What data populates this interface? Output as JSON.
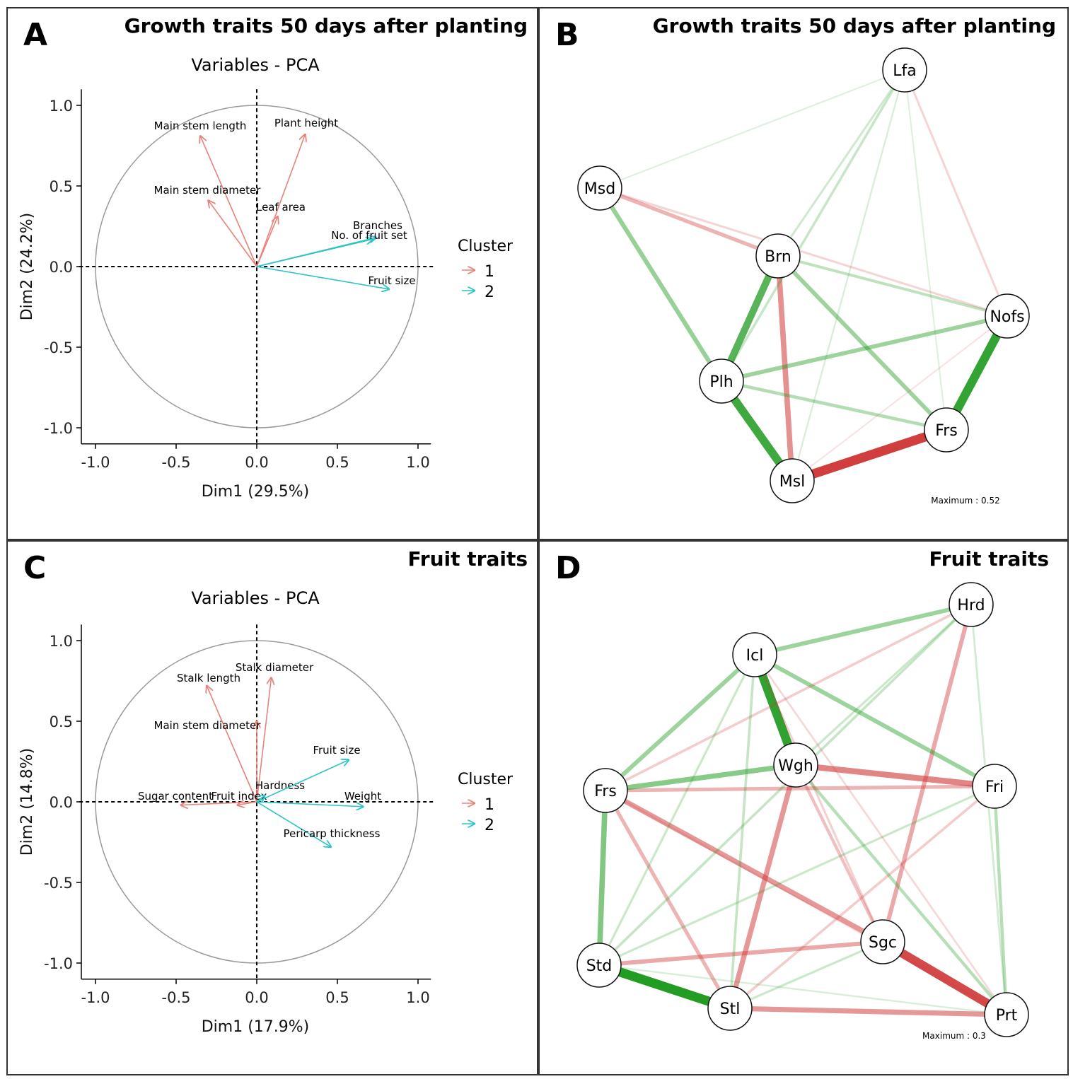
{
  "colors": {
    "cluster1": "#E8837B",
    "cluster2": "#2EC4C6",
    "positive": "#1F9A1F",
    "negative": "#D03A3A"
  },
  "panels": {
    "A": {
      "letter": "A",
      "title": "Growth traits 50 days after planting"
    },
    "B": {
      "letter": "B",
      "title": "Growth traits 50 days after planting",
      "maximum": "Maximum : 0.52"
    },
    "C": {
      "letter": "C",
      "title": "Fruit traits"
    },
    "D": {
      "letter": "D",
      "title": "Fruit traits",
      "maximum": "Maximum : 0.3"
    }
  },
  "chart_data": [
    {
      "id": "A",
      "type": "scatter",
      "subtitle": "Variables - PCA",
      "xlabel": "Dim1 (29.5%)",
      "ylabel": "Dim2 (24.2%)",
      "xlim": [
        -1.0,
        1.0
      ],
      "ylim": [
        -1.0,
        1.0
      ],
      "ticks": [
        -1.0,
        -0.5,
        0.0,
        0.5,
        1.0
      ],
      "tick_labels": [
        "-1.0",
        "-0.5",
        "0.0",
        "0.5",
        "1.0"
      ],
      "legend": {
        "title": "Cluster",
        "items": [
          "1",
          "2"
        ]
      },
      "vectors": [
        {
          "name": "Main stem length",
          "x": -0.35,
          "y": 0.81,
          "cluster": 1
        },
        {
          "name": "Plant height",
          "x": 0.3,
          "y": 0.82,
          "cluster": 1
        },
        {
          "name": "Main stem diameter",
          "x": -0.3,
          "y": 0.41,
          "cluster": 1
        },
        {
          "name": "Leaf area",
          "x": 0.13,
          "y": 0.31,
          "cluster": 1
        },
        {
          "name": "Branches",
          "x": 0.72,
          "y": 0.17,
          "cluster": 2
        },
        {
          "name": "No. of fruit set",
          "x": 0.74,
          "y": 0.18,
          "cluster": 2
        },
        {
          "name": "Fruit size",
          "x": 0.82,
          "y": -0.14,
          "cluster": 2
        }
      ]
    },
    {
      "id": "B",
      "type": "network",
      "nodes": [
        "Lfa",
        "Msd",
        "Brn",
        "Nofs",
        "Plh",
        "Frs",
        "Msl"
      ],
      "maximum": 0.52,
      "edges": [
        {
          "a": "Msl",
          "b": "Frs",
          "w": -0.52
        },
        {
          "a": "Plh",
          "b": "Msl",
          "w": 0.45
        },
        {
          "a": "Nofs",
          "b": "Frs",
          "w": 0.48
        },
        {
          "a": "Brn",
          "b": "Plh",
          "w": 0.38
        },
        {
          "a": "Brn",
          "b": "Msl",
          "w": -0.28
        },
        {
          "a": "Msd",
          "b": "Plh",
          "w": 0.22
        },
        {
          "a": "Msd",
          "b": "Brn",
          "w": -0.18
        },
        {
          "a": "Plh",
          "b": "Nofs",
          "w": 0.2
        },
        {
          "a": "Brn",
          "b": "Frs",
          "w": 0.2
        },
        {
          "a": "Plh",
          "b": "Frs",
          "w": 0.15
        },
        {
          "a": "Brn",
          "b": "Nofs",
          "w": 0.12
        },
        {
          "a": "Lfa",
          "b": "Plh",
          "w": 0.1
        },
        {
          "a": "Lfa",
          "b": "Nofs",
          "w": -0.08
        },
        {
          "a": "Lfa",
          "b": "Brn",
          "w": 0.08
        },
        {
          "a": "Msd",
          "b": "Nofs",
          "w": -0.08
        },
        {
          "a": "Lfa",
          "b": "Msl",
          "w": 0.05
        },
        {
          "a": "Lfa",
          "b": "Msd",
          "w": 0.04
        },
        {
          "a": "Lfa",
          "b": "Frs",
          "w": 0.04
        },
        {
          "a": "Msl",
          "b": "Nofs",
          "w": -0.04
        }
      ]
    },
    {
      "id": "C",
      "type": "scatter",
      "subtitle": "Variables - PCA",
      "xlabel": "Dim1 (17.9%)",
      "ylabel": "Dim2 (14.8%)",
      "xlim": [
        -1.0,
        1.0
      ],
      "ylim": [
        -1.0,
        1.0
      ],
      "ticks": [
        -1.0,
        -0.5,
        0.0,
        0.5,
        1.0
      ],
      "tick_labels": [
        "-1.0",
        "-0.5",
        "0.0",
        "0.5",
        "1.0"
      ],
      "legend": {
        "title": "Cluster",
        "items": [
          "1",
          "2"
        ]
      },
      "vectors": [
        {
          "name": "Stalk length",
          "x": -0.31,
          "y": 0.72,
          "cluster": 1
        },
        {
          "name": "Stalk diameter",
          "x": 0.09,
          "y": 0.77,
          "cluster": 1
        },
        {
          "name": "Main stem diameter",
          "x": 0.0,
          "y": 0.5,
          "cluster": 1
        },
        {
          "name": "Sugar content",
          "x": -0.47,
          "y": -0.02,
          "cluster": 1
        },
        {
          "name": "Fruit index",
          "x": -0.12,
          "y": -0.02,
          "cluster": 1
        },
        {
          "name": "Hardness",
          "x": 0.05,
          "y": 0.04,
          "cluster": 2
        },
        {
          "name": "Fruit size",
          "x": 0.57,
          "y": 0.26,
          "cluster": 2
        },
        {
          "name": "Weight",
          "x": 0.66,
          "y": -0.03,
          "cluster": 2
        },
        {
          "name": "Pericarp thickness",
          "x": 0.46,
          "y": -0.28,
          "cluster": 2
        }
      ]
    },
    {
      "id": "D",
      "type": "network",
      "nodes": [
        "Hrd",
        "Icl",
        "Wgh",
        "Frs",
        "Fri",
        "Sgc",
        "Std",
        "Stl",
        "Prt"
      ],
      "maximum": 0.3,
      "edges": [
        {
          "a": "Icl",
          "b": "Wgh",
          "w": 0.28
        },
        {
          "a": "Std",
          "b": "Stl",
          "w": 0.3
        },
        {
          "a": "Sgc",
          "b": "Prt",
          "w": -0.28
        },
        {
          "a": "Wgh",
          "b": "Fri",
          "w": -0.18
        },
        {
          "a": "Stl",
          "b": "Prt",
          "w": -0.15
        },
        {
          "a": "Frs",
          "b": "Sgc",
          "w": -0.15
        },
        {
          "a": "Wgh",
          "b": "Stl",
          "w": -0.15
        },
        {
          "a": "Std",
          "b": "Sgc",
          "w": -0.12
        },
        {
          "a": "Frs",
          "b": "Fri",
          "w": -0.1
        },
        {
          "a": "Hrd",
          "b": "Sgc",
          "w": -0.12
        },
        {
          "a": "Frs",
          "b": "Stl",
          "w": -0.1
        },
        {
          "a": "Frs",
          "b": "Std",
          "w": 0.16
        },
        {
          "a": "Frs",
          "b": "Wgh",
          "w": 0.15
        },
        {
          "a": "Icl",
          "b": "Hrd",
          "w": 0.12
        },
        {
          "a": "Icl",
          "b": "Fri",
          "w": 0.12
        },
        {
          "a": "Icl",
          "b": "Frs",
          "w": 0.12
        },
        {
          "a": "Fri",
          "b": "Prt",
          "w": 0.08
        },
        {
          "a": "Wgh",
          "b": "Prt",
          "w": 0.08
        },
        {
          "a": "Hrd",
          "b": "Std",
          "w": 0.06
        },
        {
          "a": "Hrd",
          "b": "Frs",
          "w": -0.06
        },
        {
          "a": "Wgh",
          "b": "Sgc",
          "w": -0.08
        },
        {
          "a": "Icl",
          "b": "Stl",
          "w": 0.06
        },
        {
          "a": "Icl",
          "b": "Std",
          "w": 0.05
        },
        {
          "a": "Icl",
          "b": "Sgc",
          "w": -0.05
        },
        {
          "a": "Fri",
          "b": "Std",
          "w": 0.05
        },
        {
          "a": "Fri",
          "b": "Stl",
          "w": -0.06
        },
        {
          "a": "Sgc",
          "b": "Stl",
          "w": 0.05
        },
        {
          "a": "Hrd",
          "b": "Wgh",
          "w": 0.05
        },
        {
          "a": "Hrd",
          "b": "Prt",
          "w": 0.04
        },
        {
          "a": "Std",
          "b": "Prt",
          "w": 0.03
        },
        {
          "a": "Frs",
          "b": "Prt",
          "w": -0.03
        },
        {
          "a": "Icl",
          "b": "Prt",
          "w": -0.04
        }
      ]
    }
  ]
}
